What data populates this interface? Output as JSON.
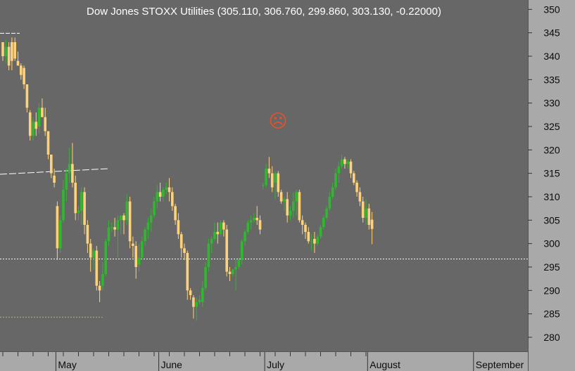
{
  "title": "Dow Jones STOXX Utilities (305.110, 306.760, 299.860, 303.130, -0.22000)",
  "icons": {
    "status_face": "sad-face-icon",
    "status_face_glyph": "☹",
    "status_face_color": "#e5522a"
  },
  "colors": {
    "background": "#676767",
    "axis_panel": "#a9a9a9",
    "bull": "#2db82d",
    "bear": "#ffd27a",
    "reference_line": "#ffffff",
    "low_marker": "#f29a3b"
  },
  "chart_data": {
    "type": "candlestick",
    "title": "Dow Jones STOXX Utilities (305.110, 306.760, 299.860, 303.130, -0.22000)",
    "last_bar": {
      "open": 305.11,
      "high": 306.76,
      "low": 299.86,
      "close": 303.13,
      "change": -0.22
    },
    "ylim": [
      277,
      352
    ],
    "y_ticks": [
      280,
      285,
      290,
      295,
      300,
      305,
      310,
      315,
      320,
      325,
      330,
      335,
      340,
      345,
      350
    ],
    "month_labels": [
      {
        "label": "May",
        "start_index": 18
      },
      {
        "label": "June",
        "start_index": 52
      },
      {
        "label": "July",
        "start_index": 87
      },
      {
        "label": "August",
        "start_index": 121
      },
      {
        "label": "September",
        "start_index": 156
      }
    ],
    "reference_levels": {
      "dotted_horizontal": 296.7,
      "orange_dotted": 284.3,
      "top_left_dash": 344.9,
      "dashed_diagonal": [
        314.8,
        316.0
      ]
    },
    "candles": [
      [
        343,
        343,
        339,
        340
      ],
      [
        340,
        343.5,
        338.5,
        342
      ],
      [
        342,
        343,
        337,
        338
      ],
      [
        343,
        344,
        337,
        339
      ],
      [
        343,
        344,
        339,
        339.5
      ],
      [
        339,
        341,
        338,
        338
      ],
      [
        338,
        338.5,
        335,
        336
      ],
      [
        337.5,
        338,
        333,
        334
      ],
      [
        334,
        334,
        328,
        329
      ],
      [
        328,
        328.5,
        322,
        323
      ],
      [
        323,
        327,
        322,
        326
      ],
      [
        326,
        328,
        323,
        324.5
      ],
      [
        325,
        330,
        323.5,
        329
      ],
      [
        329,
        331,
        327,
        327
      ],
      [
        327,
        329,
        323,
        324
      ],
      [
        324,
        324,
        318,
        319
      ],
      [
        319,
        319,
        314,
        315
      ],
      [
        314.5,
        316,
        312,
        313
      ],
      [
        308,
        309,
        296.5,
        299
      ],
      [
        299,
        306,
        298,
        305
      ],
      [
        305,
        313.5,
        304.5,
        311.5
      ],
      [
        311.5,
        316,
        309,
        315
      ],
      [
        315,
        320.5,
        313,
        317
      ],
      [
        317,
        321.5,
        312,
        313
      ],
      [
        313,
        314.5,
        305,
        306.5
      ],
      [
        306.5,
        308,
        305,
        307
      ],
      [
        307,
        312,
        304,
        311
      ],
      [
        311,
        312,
        302,
        304
      ],
      [
        304,
        305,
        298,
        300
      ],
      [
        300,
        301,
        294,
        297
      ],
      [
        297,
        299,
        294.5,
        298.5
      ],
      [
        298.5,
        299.5,
        290,
        291
      ],
      [
        291,
        292,
        287.5,
        290
      ],
      [
        291,
        296,
        290,
        293.5
      ],
      [
        293.5,
        301,
        293,
        300.5
      ],
      [
        300.5,
        305,
        299.5,
        303.5
      ],
      [
        303.5,
        304.5,
        302.5,
        303.5
      ],
      [
        303.5,
        305.5,
        301.5,
        303
      ],
      [
        303,
        306,
        297,
        305
      ],
      [
        305,
        306,
        302,
        306
      ],
      [
        306,
        306.5,
        302,
        305
      ],
      [
        305,
        310.5,
        304,
        309
      ],
      [
        309,
        310,
        299,
        300.5
      ],
      [
        300,
        301.5,
        297,
        299.5
      ],
      [
        299.5,
        300.5,
        292.5,
        295
      ],
      [
        295.5,
        300,
        294,
        297
      ],
      [
        297,
        301.5,
        296.5,
        300.5
      ],
      [
        300.5,
        303.5,
        299.5,
        303
      ],
      [
        303,
        305.5,
        301,
        304.5
      ],
      [
        304.5,
        307.5,
        302.5,
        306
      ],
      [
        306,
        310,
        305.5,
        309
      ],
      [
        309,
        312.5,
        307.5,
        311
      ],
      [
        311,
        313,
        309,
        310
      ],
      [
        310,
        312,
        309,
        311.5
      ],
      [
        311.5,
        313,
        310.5,
        312
      ],
      [
        312,
        314,
        309,
        311
      ],
      [
        311,
        312,
        307,
        308
      ],
      [
        308,
        308.5,
        304,
        305
      ],
      [
        305,
        306.5,
        301,
        302
      ],
      [
        302,
        302.5,
        297,
        299
      ],
      [
        299,
        300,
        296.5,
        298
      ],
      [
        298,
        298.5,
        288,
        290
      ],
      [
        290,
        290.5,
        288,
        289
      ],
      [
        288.5,
        289,
        284,
        286.5
      ],
      [
        286.5,
        288.5,
        283.5,
        287.5
      ],
      [
        287.5,
        289,
        287,
        288
      ],
      [
        287.5,
        292,
        286.5,
        290.5
      ],
      [
        290.5,
        296,
        290,
        295
      ],
      [
        295,
        301,
        294,
        300
      ],
      [
        300,
        301.5,
        298,
        301
      ],
      [
        301,
        304.5,
        300.5,
        302.5
      ],
      [
        302.5,
        304.5,
        300,
        302
      ],
      [
        302,
        305,
        301.5,
        304.5
      ],
      [
        304.5,
        305,
        301.5,
        303
      ],
      [
        303,
        304,
        293,
        294
      ],
      [
        294,
        295,
        292,
        293.5
      ],
      [
        293.5,
        294.5,
        293,
        294.5
      ],
      [
        294.5,
        296.5,
        290,
        295
      ],
      [
        295,
        297,
        294.5,
        296.5
      ],
      [
        296.5,
        301,
        295.5,
        300.5
      ],
      [
        300.5,
        303,
        299.5,
        302.5
      ],
      [
        302.5,
        305,
        302,
        304.5
      ],
      [
        304.5,
        306,
        303,
        305
      ],
      [
        305,
        306.5,
        304.5,
        305.5
      ],
      [
        305.5,
        308,
        304,
        305
      ],
      [
        305,
        306,
        302,
        303
      ],
      [
        312.5,
        313,
        311.5,
        312.5
      ],
      [
        312.5,
        317,
        312,
        316
      ],
      [
        316,
        318.5,
        314,
        315
      ],
      [
        315,
        316.5,
        311,
        312
      ],
      [
        313,
        315.5,
        309.5,
        315
      ],
      [
        315,
        315.5,
        310,
        311
      ],
      [
        311,
        311.5,
        308.5,
        309
      ],
      [
        309,
        310,
        307,
        309.5
      ],
      [
        309.5,
        311,
        304.5,
        306
      ],
      [
        306,
        308,
        305,
        307
      ],
      [
        307,
        311,
        305.5,
        309
      ],
      [
        309,
        311.5,
        306,
        311
      ],
      [
        311,
        311.5,
        304.5,
        305
      ],
      [
        305,
        306,
        302,
        304
      ],
      [
        304,
        304.5,
        301,
        302.5
      ],
      [
        302.5,
        303.5,
        300,
        300.5
      ],
      [
        300.5,
        302,
        298.5,
        300.5
      ],
      [
        301,
        302.5,
        298,
        300
      ],
      [
        300,
        302,
        299.5,
        301.5
      ],
      [
        301.5,
        304,
        301,
        303.5
      ],
      [
        303.5,
        306,
        303,
        305.5
      ],
      [
        305.5,
        308,
        305,
        307.5
      ],
      [
        307.5,
        311,
        307,
        310
      ],
      [
        310,
        313,
        309.5,
        312
      ],
      [
        312,
        316,
        311.5,
        315
      ],
      [
        315,
        317.5,
        313,
        316.5
      ],
      [
        316.5,
        319,
        316,
        318
      ],
      [
        318,
        318.5,
        316,
        317
      ],
      [
        317,
        318,
        316,
        317.5
      ],
      [
        317.5,
        318,
        314,
        315
      ],
      [
        315,
        315.5,
        312.5,
        313
      ],
      [
        313,
        313.5,
        310,
        311
      ],
      [
        311,
        312,
        308,
        309
      ],
      [
        309,
        310,
        304.5,
        305.5
      ],
      [
        305.5,
        309.5,
        304,
        307.5
      ],
      [
        307.5,
        308.5,
        303,
        304
      ],
      [
        305.11,
        306.76,
        299.86,
        303.13
      ]
    ]
  }
}
